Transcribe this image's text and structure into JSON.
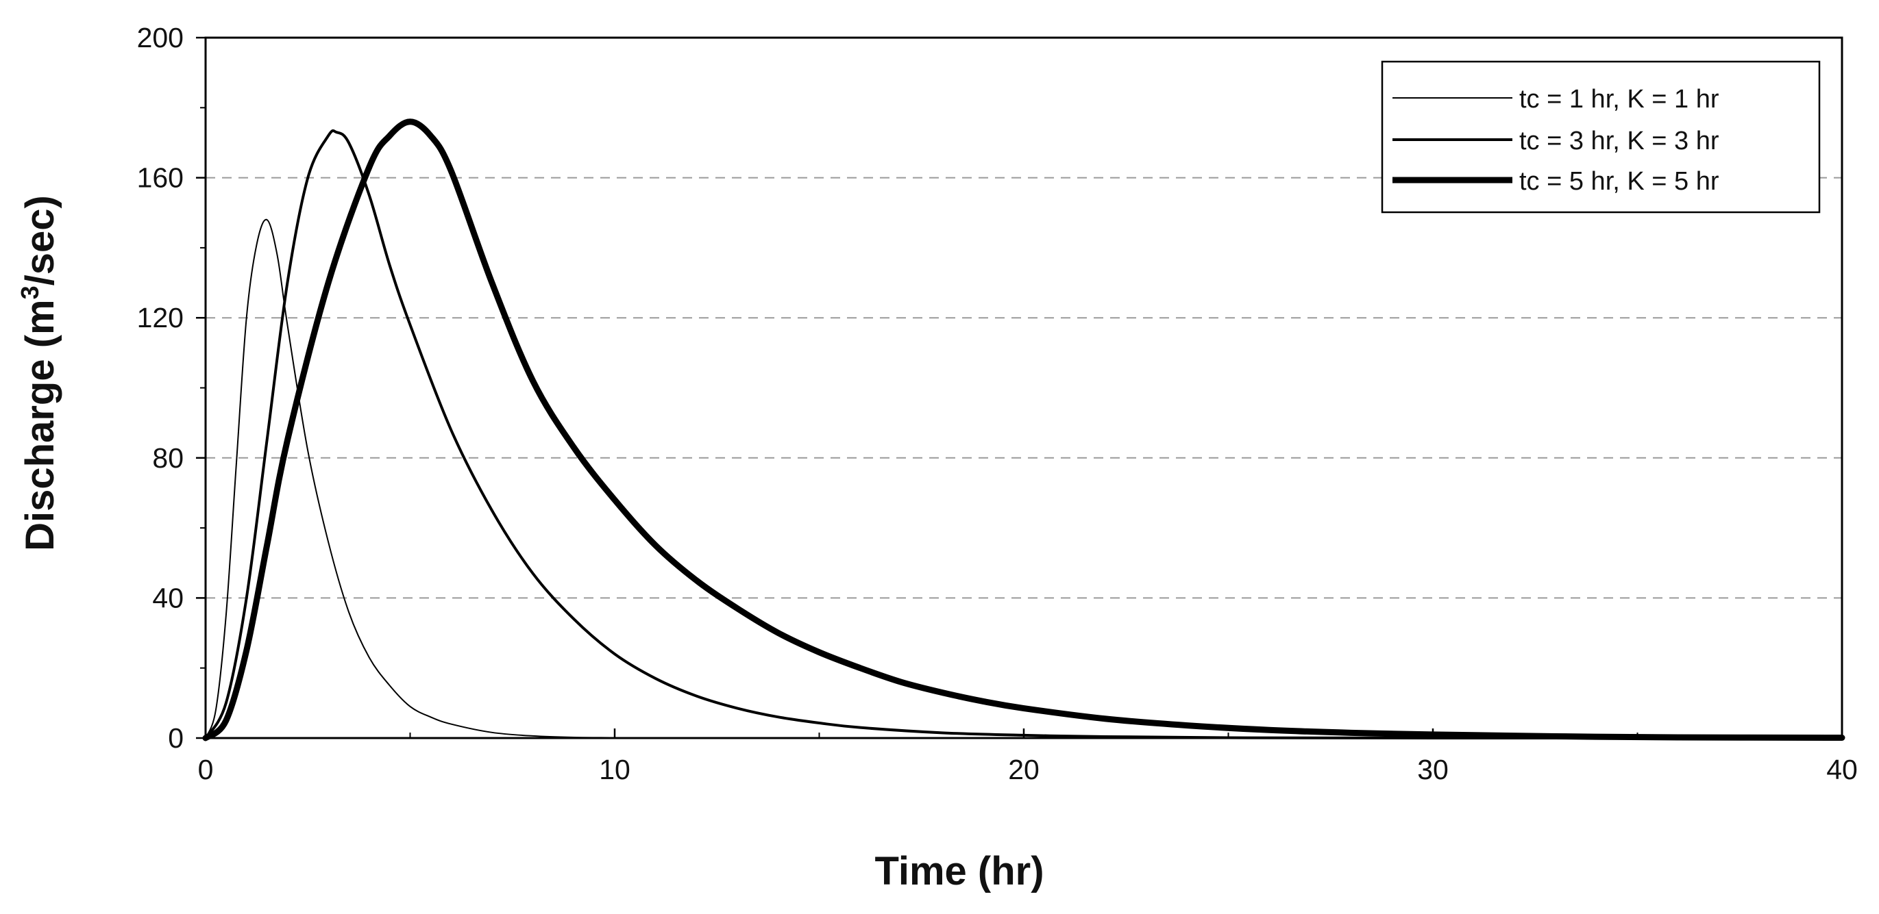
{
  "chart_data": {
    "type": "line",
    "title": "",
    "xlabel": "Time (hr)",
    "ylabel_main": "Discharge (m",
    "ylabel_sup": "3",
    "ylabel_tail": "/sec)",
    "xlim": [
      0,
      40
    ],
    "ylim": [
      0,
      200
    ],
    "x_ticks": [
      "0",
      "10",
      "20",
      "30",
      "40"
    ],
    "y_ticks": [
      "0",
      "40",
      "80",
      "120",
      "160",
      "200"
    ],
    "grid": "horizontal dashed",
    "legend_position": "top-right",
    "series": [
      {
        "name": "tc = 1 hr, K = 1 hr",
        "x": [
          0,
          0.25,
          0.5,
          0.75,
          1.0,
          1.25,
          1.5,
          1.75,
          2.0,
          2.5,
          3.0,
          3.5,
          4.0,
          4.5,
          5.0,
          5.5,
          6.0,
          7.0,
          8.0,
          9.0,
          10.0,
          12.0,
          15.0,
          20.0,
          30.0,
          40.0
        ],
        "y": [
          0,
          8,
          35,
          78,
          120,
          141,
          148,
          138,
          118,
          82,
          56,
          36,
          23,
          15,
          9,
          6,
          4,
          1.6,
          0.6,
          0.2,
          0.1,
          0,
          0,
          0,
          0,
          0
        ],
        "width": 2
      },
      {
        "name": "tc = 3 hr, K = 3 hr",
        "x": [
          0,
          0.5,
          1.0,
          1.5,
          2.0,
          2.5,
          3.0,
          3.2,
          3.5,
          4.0,
          4.5,
          5.0,
          6.0,
          7.0,
          8.0,
          9.0,
          10.0,
          11.0,
          12.0,
          13.0,
          14.0,
          15.0,
          16.0,
          18.0,
          20.0,
          22.0,
          25.0,
          30.0,
          40.0
        ],
        "y": [
          0,
          10,
          40,
          85,
          130,
          160,
          172,
          173,
          170,
          155,
          135,
          118,
          88,
          65,
          47,
          34,
          24,
          17,
          12,
          8.5,
          6,
          4.3,
          3,
          1.5,
          0.8,
          0.4,
          0.1,
          0,
          0
        ],
        "width": 4
      },
      {
        "name": "tc = 5 hr, K = 5 hr",
        "x": [
          0,
          0.5,
          1.0,
          1.5,
          2.0,
          3.0,
          4.0,
          4.5,
          5.0,
          5.5,
          6.0,
          7.0,
          8.0,
          9.0,
          10.0,
          11.0,
          12.0,
          13.0,
          14.0,
          15.0,
          16.0,
          17.0,
          18.0,
          19.0,
          20.0,
          22.0,
          24.0,
          26.0,
          28.0,
          30.0,
          33.0,
          36.0,
          40.0
        ],
        "y": [
          0,
          5,
          25,
          55,
          85,
          130,
          163,
          172,
          176,
          172,
          162,
          130,
          102,
          83,
          68,
          55,
          45,
          37,
          30,
          24.5,
          20,
          16,
          13,
          10.5,
          8.5,
          5.5,
          3.6,
          2.3,
          1.5,
          1,
          0.5,
          0.2,
          0.1
        ],
        "width": 9
      }
    ]
  }
}
